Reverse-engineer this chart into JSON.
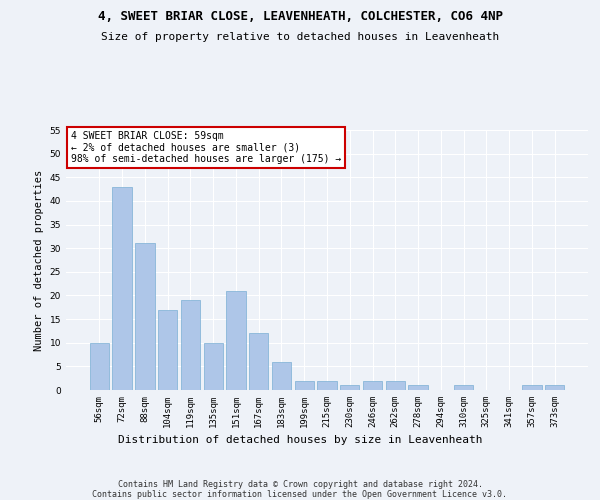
{
  "title1": "4, SWEET BRIAR CLOSE, LEAVENHEATH, COLCHESTER, CO6 4NP",
  "title2": "Size of property relative to detached houses in Leavenheath",
  "xlabel": "Distribution of detached houses by size in Leavenheath",
  "ylabel": "Number of detached properties",
  "categories": [
    "56sqm",
    "72sqm",
    "88sqm",
    "104sqm",
    "119sqm",
    "135sqm",
    "151sqm",
    "167sqm",
    "183sqm",
    "199sqm",
    "215sqm",
    "230sqm",
    "246sqm",
    "262sqm",
    "278sqm",
    "294sqm",
    "310sqm",
    "325sqm",
    "341sqm",
    "357sqm",
    "373sqm"
  ],
  "values": [
    10,
    43,
    31,
    17,
    19,
    10,
    21,
    12,
    6,
    2,
    2,
    1,
    2,
    2,
    1,
    0,
    1,
    0,
    0,
    1,
    1
  ],
  "bar_color": "#aec6e8",
  "bar_edge_color": "#7bafd4",
  "annotation_title": "4 SWEET BRIAR CLOSE: 59sqm",
  "annotation_line1": "← 2% of detached houses are smaller (3)",
  "annotation_line2": "98% of semi-detached houses are larger (175) →",
  "annotation_box_color": "#ffffff",
  "annotation_box_edge": "#cc0000",
  "ylim": [
    0,
    55
  ],
  "yticks": [
    0,
    5,
    10,
    15,
    20,
    25,
    30,
    35,
    40,
    45,
    50,
    55
  ],
  "footer1": "Contains HM Land Registry data © Crown copyright and database right 2024.",
  "footer2": "Contains public sector information licensed under the Open Government Licence v3.0.",
  "bg_color": "#eef2f8"
}
